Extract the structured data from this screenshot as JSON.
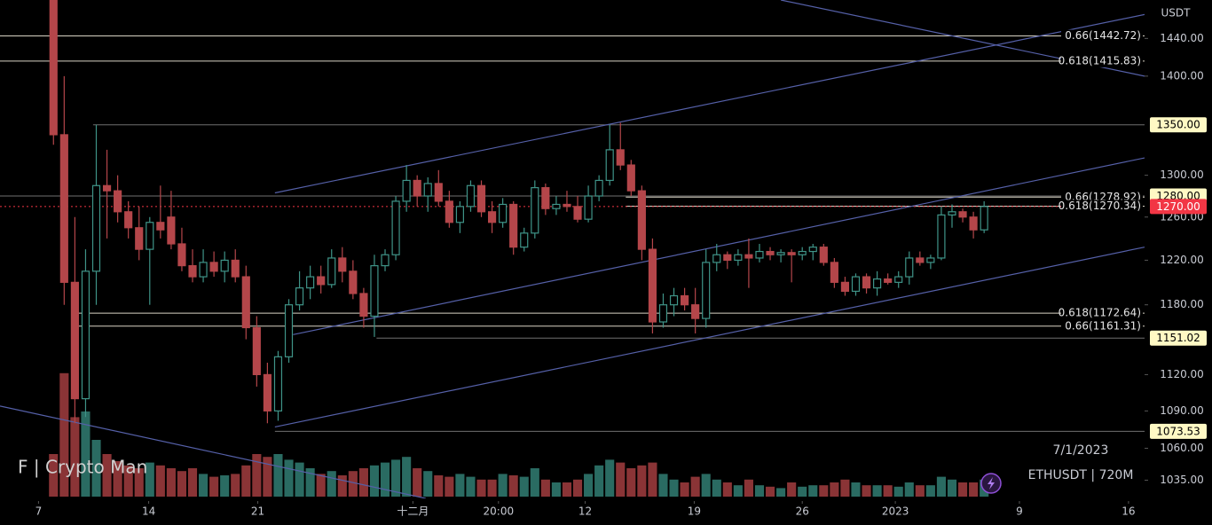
{
  "chart_data": {
    "type": "candlestick",
    "symbol": "ETHUSDT | 720M",
    "currency": "USDT",
    "date_label": "7/1/2023",
    "watermark": "F | Crypto Man",
    "log_scale": true,
    "xlim": [
      0,
      107
    ],
    "ylim": [
      1021,
      1482
    ],
    "yticks": [
      {
        "value": 1440,
        "label": "1440.00"
      },
      {
        "value": 1400,
        "label": "1400.00"
      },
      {
        "value": 1300,
        "label": "1300.00"
      },
      {
        "value": 1260,
        "label": "1260.00"
      },
      {
        "value": 1220,
        "label": "1220.00"
      },
      {
        "value": 1180,
        "label": "1180.00"
      },
      {
        "value": 1120,
        "label": "1120.00"
      },
      {
        "value": 1090,
        "label": "1090.00"
      },
      {
        "value": 1060,
        "label": "1060.00"
      },
      {
        "value": 1035,
        "label": "1035.00"
      }
    ],
    "xticks": [
      {
        "value": 3.6,
        "label": "7"
      },
      {
        "value": 13.9,
        "label": "14"
      },
      {
        "value": 24.1,
        "label": "21"
      },
      {
        "value": 38.6,
        "label": "十二月"
      },
      {
        "value": 46.6,
        "label": "20:00"
      },
      {
        "value": 54.7,
        "label": "12"
      },
      {
        "value": 64.9,
        "label": "19"
      },
      {
        "value": 75.0,
        "label": "26"
      },
      {
        "value": 83.7,
        "label": "2023"
      },
      {
        "value": 95.3,
        "label": "9"
      },
      {
        "value": 105.5,
        "label": "16"
      }
    ],
    "up_color": "#3f9488",
    "down_color": "#b4464a",
    "volume_up_color": "#2a6b62",
    "volume_down_color": "#8a3436",
    "vlim": [
      0,
      100
    ],
    "x": [
      5,
      6,
      7,
      8,
      9,
      10,
      11,
      12,
      13,
      14,
      15,
      16,
      17,
      18,
      19,
      20,
      21,
      22,
      23,
      24,
      25,
      26,
      27,
      28,
      29,
      30,
      31,
      32,
      33,
      34,
      35,
      36,
      37,
      38,
      39,
      40,
      41,
      42,
      43,
      44,
      45,
      46,
      47,
      48,
      49,
      50,
      51,
      52,
      53,
      54,
      55,
      56,
      57,
      58,
      59,
      60,
      61,
      62,
      63,
      64,
      65,
      66,
      67,
      68,
      69,
      70,
      71,
      72,
      73,
      74,
      75,
      76,
      77,
      78,
      79,
      80,
      81,
      82,
      83,
      84,
      85,
      86,
      87,
      88,
      89,
      90,
      91,
      92
    ],
    "candles": [
      [
        1482,
        1482,
        1330,
        1340
      ],
      [
        1340,
        1400,
        1180,
        1200
      ],
      [
        1200,
        1260,
        1080,
        1100
      ],
      [
        1100,
        1230,
        1085,
        1210
      ],
      [
        1210,
        1350,
        1180,
        1290
      ],
      [
        1290,
        1325,
        1240,
        1285
      ],
      [
        1285,
        1300,
        1255,
        1265
      ],
      [
        1265,
        1275,
        1240,
        1250
      ],
      [
        1250,
        1270,
        1220,
        1230
      ],
      [
        1230,
        1260,
        1180,
        1255
      ],
      [
        1255,
        1290,
        1240,
        1248
      ],
      [
        1260,
        1285,
        1230,
        1235
      ],
      [
        1235,
        1250,
        1210,
        1215
      ],
      [
        1215,
        1230,
        1200,
        1205
      ],
      [
        1205,
        1230,
        1200,
        1218
      ],
      [
        1218,
        1228,
        1205,
        1210
      ],
      [
        1210,
        1228,
        1200,
        1220
      ],
      [
        1220,
        1230,
        1200,
        1205
      ],
      [
        1205,
        1215,
        1150,
        1160
      ],
      [
        1160,
        1170,
        1110,
        1120
      ],
      [
        1120,
        1130,
        1080,
        1090
      ],
      [
        1090,
        1140,
        1082,
        1135
      ],
      [
        1135,
        1185,
        1130,
        1180
      ],
      [
        1180,
        1210,
        1175,
        1195
      ],
      [
        1195,
        1215,
        1185,
        1205
      ],
      [
        1205,
        1215,
        1190,
        1198
      ],
      [
        1198,
        1230,
        1195,
        1222
      ],
      [
        1222,
        1232,
        1200,
        1210
      ],
      [
        1210,
        1220,
        1185,
        1190
      ],
      [
        1190,
        1195,
        1160,
        1170
      ],
      [
        1170,
        1225,
        1152,
        1215
      ],
      [
        1215,
        1230,
        1210,
        1225
      ],
      [
        1225,
        1280,
        1220,
        1275
      ],
      [
        1275,
        1310,
        1265,
        1295
      ],
      [
        1295,
        1300,
        1270,
        1280
      ],
      [
        1280,
        1298,
        1265,
        1292
      ],
      [
        1292,
        1305,
        1270,
        1275
      ],
      [
        1275,
        1285,
        1250,
        1255
      ],
      [
        1255,
        1275,
        1245,
        1270
      ],
      [
        1270,
        1295,
        1265,
        1290
      ],
      [
        1290,
        1295,
        1260,
        1265
      ],
      [
        1265,
        1275,
        1245,
        1255
      ],
      [
        1255,
        1278,
        1250,
        1272
      ],
      [
        1272,
        1275,
        1225,
        1232
      ],
      [
        1232,
        1250,
        1228,
        1245
      ],
      [
        1245,
        1295,
        1240,
        1288
      ],
      [
        1288,
        1292,
        1262,
        1268
      ],
      [
        1268,
        1280,
        1262,
        1272
      ],
      [
        1272,
        1285,
        1265,
        1270
      ],
      [
        1270,
        1280,
        1255,
        1258
      ],
      [
        1258,
        1290,
        1255,
        1280
      ],
      [
        1280,
        1300,
        1275,
        1295
      ],
      [
        1295,
        1350,
        1290,
        1325
      ],
      [
        1325,
        1352,
        1305,
        1310
      ],
      [
        1310,
        1315,
        1280,
        1285
      ],
      [
        1285,
        1290,
        1220,
        1230
      ],
      [
        1230,
        1240,
        1155,
        1165
      ],
      [
        1165,
        1190,
        1160,
        1180
      ],
      [
        1180,
        1195,
        1170,
        1188
      ],
      [
        1188,
        1195,
        1175,
        1180
      ],
      [
        1180,
        1195,
        1155,
        1168
      ],
      [
        1168,
        1230,
        1160,
        1218
      ],
      [
        1218,
        1235,
        1210,
        1225
      ],
      [
        1225,
        1228,
        1212,
        1220
      ],
      [
        1220,
        1230,
        1215,
        1225
      ],
      [
        1225,
        1240,
        1195,
        1222
      ],
      [
        1222,
        1235,
        1218,
        1228
      ],
      [
        1228,
        1232,
        1220,
        1225
      ],
      [
        1225,
        1230,
        1218,
        1227
      ],
      [
        1227,
        1230,
        1200,
        1225
      ],
      [
        1225,
        1232,
        1220,
        1228
      ],
      [
        1228,
        1235,
        1220,
        1232
      ],
      [
        1232,
        1235,
        1215,
        1218
      ],
      [
        1218,
        1222,
        1195,
        1200
      ],
      [
        1200,
        1205,
        1188,
        1192
      ],
      [
        1192,
        1208,
        1188,
        1205
      ],
      [
        1205,
        1208,
        1190,
        1195
      ],
      [
        1195,
        1210,
        1188,
        1203
      ],
      [
        1203,
        1208,
        1198,
        1200
      ],
      [
        1200,
        1210,
        1195,
        1205
      ],
      [
        1205,
        1228,
        1198,
        1222
      ],
      [
        1222,
        1228,
        1215,
        1218
      ],
      [
        1218,
        1225,
        1212,
        1222
      ],
      [
        1222,
        1270,
        1220,
        1262
      ],
      [
        1262,
        1272,
        1250,
        1265
      ],
      [
        1265,
        1268,
        1255,
        1260
      ],
      [
        1260,
        1265,
        1240,
        1248
      ],
      [
        1248,
        1275,
        1245,
        1270
      ]
    ],
    "volume": [
      30,
      87,
      56,
      60,
      40,
      30,
      25,
      22,
      20,
      24,
      22,
      20,
      18,
      20,
      16,
      14,
      15,
      16,
      22,
      30,
      28,
      30,
      26,
      24,
      20,
      16,
      18,
      15,
      18,
      20,
      22,
      24,
      26,
      28,
      20,
      18,
      15,
      14,
      16,
      14,
      12,
      12,
      16,
      15,
      14,
      20,
      12,
      10,
      10,
      12,
      16,
      22,
      26,
      24,
      20,
      22,
      24,
      16,
      12,
      10,
      14,
      16,
      12,
      10,
      8,
      12,
      8,
      7,
      6,
      10,
      7,
      8,
      8,
      10,
      12,
      10,
      8,
      8,
      8,
      7,
      10,
      8,
      8,
      14,
      12,
      10,
      10,
      12
    ],
    "level_color": "#d8d3c4",
    "levels": [
      {
        "value": 1442.72,
        "label": "0.66(1442.72)",
        "from": 0
      },
      {
        "value": 1415.83,
        "label": "0.618(1415.83)",
        "from": 0
      },
      {
        "value": 1278.92,
        "label": "0.66(1278.92)",
        "from": 58.5
      },
      {
        "value": 1270.34,
        "label": "0.618(1270.34)",
        "from": 58.5
      },
      {
        "value": 1172.64,
        "label": "0.618(1172.64)",
        "from": 7.3
      },
      {
        "value": 1161.31,
        "label": "0.66(1161.31)",
        "from": 7.3
      }
    ],
    "price_labels": [
      {
        "value": 1350,
        "label": "1350.00",
        "from": 8.7,
        "color": "#fff9c4",
        "text_color": "#000000"
      },
      {
        "value": 1280,
        "label": "1280.00",
        "from": 0,
        "color": "#fff9c4",
        "text_color": "#000000"
      },
      {
        "value": 1270,
        "label": "1270.00",
        "from": 0,
        "color": "#f23645",
        "text_color": "#ffffff"
      },
      {
        "value": 1151.02,
        "label": "1151.02",
        "from": 35.2,
        "color": "#fff9c4",
        "text_color": "#000000"
      },
      {
        "value": 1073.53,
        "label": "1073.53",
        "from": 25.7,
        "color": "#fff9c4",
        "text_color": "#000000"
      }
    ],
    "trendline_color": "#5560a8",
    "trendlines": [
      {
        "x": [
          25.7,
          107
        ],
        "y": [
          1283,
          1466
        ]
      },
      {
        "x": [
          27.4,
          107
        ],
        "y": [
          1154,
          1317
        ]
      },
      {
        "x": [
          25.7,
          107
        ],
        "y": [
          1077,
          1232
        ]
      },
      {
        "x": [
          73,
          107
        ],
        "y": [
          1482,
          1400
        ]
      },
      {
        "x": [
          0,
          39.8
        ],
        "y": [
          1094,
          1021
        ]
      }
    ]
  }
}
